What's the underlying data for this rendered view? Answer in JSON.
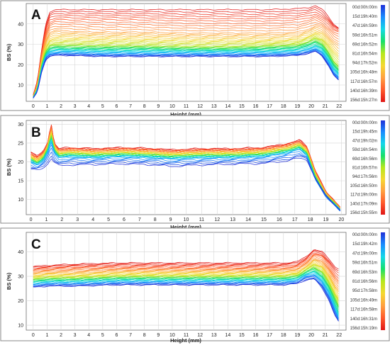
{
  "colors": {
    "stops": [
      "#1f2fd8",
      "#1a8cff",
      "#14d8e8",
      "#16e06a",
      "#b6e81c",
      "#f5d830",
      "#ffa040",
      "#ff5a2c",
      "#e01616"
    ],
    "grid": "#d6d6d6",
    "frame": "#8a8a8a"
  },
  "chart_data": [
    {
      "type": "line",
      "panel_label": "A",
      "xlabel": "Height (mm)",
      "ylabel": "BS (%)",
      "xlim": [
        -0.5,
        22.5
      ],
      "ylim": [
        2,
        50
      ],
      "x_ticks": [
        0,
        1,
        2,
        3,
        4,
        5,
        6,
        7,
        8,
        9,
        10,
        11,
        12,
        13,
        14,
        15,
        16,
        17,
        18,
        19,
        20,
        21,
        22
      ],
      "y_ticks": [
        10,
        20,
        30,
        40
      ],
      "grid": true,
      "legend_position": "right",
      "legend": [
        "00d:00h:00m",
        "15d:19h:40m",
        "47d:16h:59m",
        "59d:16h:51m",
        "69d:16h:52m",
        "81d:16h:54m",
        "94d:17h:52m",
        "105d:16h:48m",
        "117d:16h:57m",
        "140d:16h:39m",
        "156d:15h:27m"
      ],
      "profile": {
        "x": [
          0,
          0.3,
          0.6,
          0.9,
          1.2,
          1.6,
          2.5,
          5,
          8,
          11,
          14,
          17,
          19,
          19.8,
          20.3,
          20.8,
          21.2,
          21.6,
          22
        ],
        "series": [
          {
            "values": [
              5,
              12,
              27,
              40,
              46,
              47,
              47,
              47,
              47,
              47,
              47,
              47,
              47.5,
              48,
              49,
              47,
              44,
              40,
              38
            ]
          },
          {
            "values": [
              4.5,
              11,
              25,
              36,
              41,
              42,
              42,
              42,
              42,
              41.5,
              41.5,
              41.5,
              42,
              43,
              44,
              42,
              40,
              37,
              36
            ]
          },
          {
            "values": [
              4.3,
              10,
              23,
              32,
              36,
              37,
              36.5,
              36,
              36,
              35.5,
              35.5,
              35.5,
              36,
              37.5,
              39,
              38,
              35,
              32,
              30
            ]
          },
          {
            "values": [
              4.1,
              9,
              21,
              29,
              32,
              33,
              33,
              32.5,
              32.5,
              32,
              32,
              32,
              32.5,
              34,
              35.5,
              34,
              31,
              27,
              24
            ]
          },
          {
            "values": [
              4,
              8.5,
              20,
              27,
              29.5,
              30,
              30,
              29.5,
              29.5,
              29,
              29,
              29.5,
              30,
              31.5,
              33,
              31,
              27,
              22,
              19
            ]
          },
          {
            "values": [
              3.9,
              8,
              19,
              25.5,
              28,
              28.5,
              28,
              28,
              28,
              27.5,
              27.5,
              28,
              28.5,
              30,
              31,
              29,
              25,
              20,
              17
            ]
          },
          {
            "values": [
              3.8,
              7.5,
              18,
              24.5,
              26.5,
              27,
              27,
              26.5,
              26.5,
              26.5,
              26.5,
              26.5,
              27,
              28,
              29,
              27,
              23,
              18,
              15
            ]
          },
          {
            "values": [
              3.7,
              7,
              17,
              23.5,
              25,
              25.5,
              25.5,
              25,
              25,
              25,
              25,
              25,
              25.5,
              26.5,
              27.5,
              25,
              21,
              16,
              13
            ]
          },
          {
            "values": [
              3.6,
              6.5,
              16,
              22.5,
              24,
              24.5,
              24.5,
              24,
              24,
              24,
              24,
              24,
              24.5,
              25.5,
              26.5,
              24,
              20,
              15,
              12
            ]
          }
        ]
      }
    },
    {
      "type": "line",
      "panel_label": "B",
      "xlabel": "Height (mm)",
      "ylabel": "BS (%)",
      "xlim": [
        -0.3,
        20.3
      ],
      "ylim": [
        6,
        31
      ],
      "x_ticks": [
        0,
        1,
        2,
        3,
        4,
        5,
        6,
        7,
        8,
        9,
        10,
        11,
        12,
        13,
        14,
        15,
        16,
        17,
        18,
        19,
        20
      ],
      "y_ticks": [
        10,
        15,
        20,
        25,
        30
      ],
      "grid": true,
      "legend_position": "right",
      "legend": [
        "00d:00h:00m",
        "15d:19h:45m",
        "47d:19h:02m",
        "59d:16h:54m",
        "69d:16h:56m",
        "81d:16h:57m",
        "94d:17h:56m",
        "105d:16h:50m",
        "117d:19h:00m",
        "140d:17h:09m",
        "156d:15h:55m"
      ],
      "profile": {
        "x": [
          0,
          0.4,
          0.8,
          1.1,
          1.3,
          1.5,
          1.8,
          2.5,
          4,
          6,
          8,
          9,
          11,
          13,
          15,
          16.5,
          17.3,
          17.8,
          18.3,
          19,
          19.6,
          20
        ],
        "series": [
          {
            "values": [
              22.5,
              21.5,
              22.8,
              25.5,
              30.5,
              25,
              23.5,
              23.8,
              23.5,
              23.8,
              23.5,
              23.2,
              23.5,
              23.5,
              23.8,
              24.8,
              25.8,
              24,
              18,
              12,
              9.5,
              7.5
            ]
          },
          {
            "values": [
              22,
              21,
              22.3,
              25,
              29.5,
              24.5,
              23,
              23.3,
              23,
              23.3,
              23,
              22.7,
              23,
              23,
              23.3,
              24.3,
              25.3,
              23.5,
              17.5,
              11.8,
              9.3,
              7.3
            ]
          },
          {
            "values": [
              21.5,
              20.5,
              21.8,
              24.3,
              28.5,
              24,
              22.5,
              22.8,
              22.5,
              22.8,
              22.5,
              22.2,
              22.5,
              22.5,
              22.8,
              23.8,
              24.8,
              23,
              17,
              11.5,
              9,
              7.2
            ]
          },
          {
            "values": [
              21,
              20,
              21.3,
              23.8,
              27.5,
              23.5,
              22,
              22.3,
              22,
              22.3,
              22,
              21.7,
              22,
              22,
              22.3,
              23.3,
              24.3,
              22.5,
              16.5,
              11.2,
              8.8,
              7
            ]
          },
          {
            "values": [
              20.5,
              19.5,
              20.8,
              23.2,
              26.5,
              23,
              21.5,
              21.8,
              21.5,
              21.8,
              21.5,
              21.2,
              21.5,
              21.5,
              21.8,
              22.8,
              23.8,
              22,
              16,
              11,
              8.6,
              6.9
            ]
          },
          {
            "values": [
              20,
              19,
              20.3,
              22.7,
              25.5,
              22.5,
              21,
              21.3,
              21,
              21.3,
              21,
              20.7,
              21,
              21,
              21.3,
              22.3,
              23.3,
              21.5,
              15.5,
              10.8,
              8.4,
              6.8
            ]
          },
          {
            "values": [
              18,
              17.8,
              18.5,
              19.5,
              21,
              19.8,
              19,
              19.2,
              19.3,
              19.5,
              19.2,
              18.8,
              19.2,
              19.4,
              19.6,
              20.3,
              21,
              20.5,
              15.8,
              11,
              8.5,
              6.8
            ]
          }
        ]
      }
    },
    {
      "type": "line",
      "panel_label": "C",
      "xlabel": "Height (mm)",
      "ylabel": "BS (%)",
      "xlim": [
        -0.5,
        22.5
      ],
      "ylim": [
        8,
        48
      ],
      "x_ticks": [
        0,
        1,
        2,
        3,
        4,
        5,
        6,
        7,
        8,
        9,
        10,
        11,
        12,
        13,
        14,
        15,
        16,
        17,
        18,
        19,
        20,
        21,
        22
      ],
      "y_ticks": [
        10,
        20,
        30,
        40
      ],
      "grid": true,
      "legend_position": "right",
      "legend": [
        "00d:00h:00m",
        "15d:19h:42m",
        "47d:19h:00m",
        "59d:16h:51m",
        "69d:16h:53m",
        "81d:16h:56m",
        "95d:17h:58m",
        "105d:16h:49m",
        "117d:16h:58m",
        "140d:16h:31m",
        "156d:15h:19m"
      ],
      "profile": {
        "x": [
          0,
          1,
          3,
          6,
          9,
          12,
          15,
          18,
          19,
          19.6,
          20.2,
          20.8,
          21.3,
          21.7,
          22
        ],
        "series": [
          {
            "values": [
              34,
              34.5,
              35,
              35.5,
              35.5,
              35.5,
              35.5,
              35.5,
              36,
              38,
              41,
              40,
              37,
              34,
              33
            ]
          },
          {
            "values": [
              32.5,
              33,
              33.5,
              33.5,
              33.5,
              33.5,
              33.5,
              33.5,
              34,
              36,
              39,
              38,
              34,
              30,
              28
            ]
          },
          {
            "values": [
              31,
              31.5,
              31.5,
              32,
              32,
              32,
              32,
              32,
              32.5,
              34,
              37,
              35,
              31,
              26,
              24
            ]
          },
          {
            "values": [
              29.5,
              30,
              30,
              30.5,
              30.5,
              30.5,
              30.5,
              30.5,
              31,
              33,
              35,
              33,
              28,
              23,
              20
            ]
          },
          {
            "values": [
              28.5,
              29,
              29,
              29.5,
              29.5,
              29.5,
              29.5,
              29.5,
              30,
              32,
              33.5,
              31,
              26,
              21,
              17
            ]
          },
          {
            "values": [
              27.5,
              28,
              28,
              28.5,
              28.5,
              28.5,
              28.5,
              28.5,
              29,
              31,
              32,
              29,
              24,
              18,
              14
            ]
          },
          {
            "values": [
              26.5,
              27,
              27,
              27.5,
              27.5,
              27.5,
              27.5,
              27.5,
              28,
              30,
              30.5,
              27,
              22,
              16,
              12
            ]
          },
          {
            "values": [
              25.5,
              26,
              26,
              26.5,
              26.5,
              26.5,
              26.5,
              26.5,
              27,
              28.5,
              29,
              25,
              20,
              14,
              11
            ]
          }
        ]
      }
    }
  ]
}
